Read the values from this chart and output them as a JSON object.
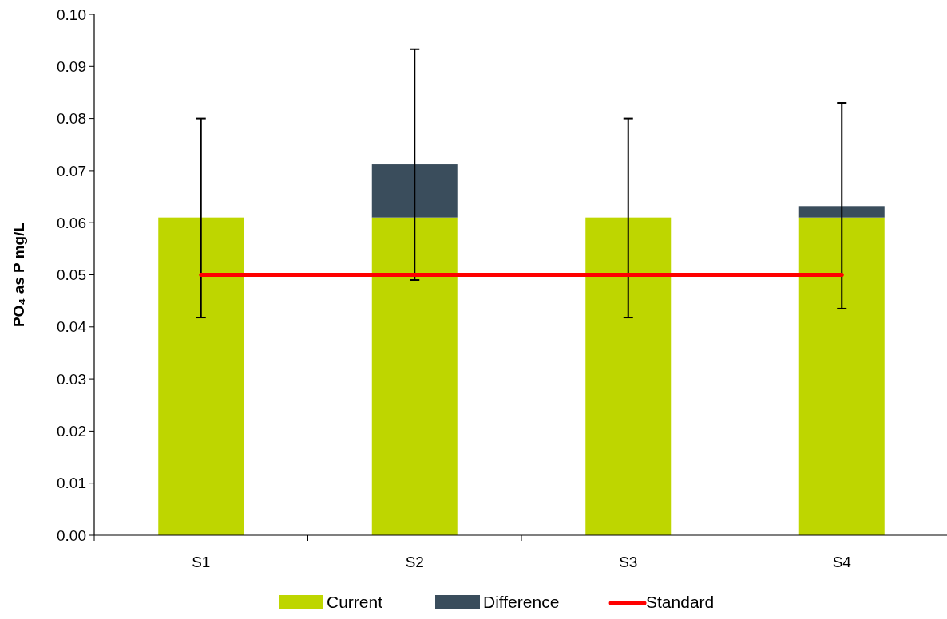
{
  "chart_data": {
    "type": "bar",
    "stacked": true,
    "ylabel": "PO₄ as P mg/L",
    "categories": [
      "S1",
      "S2",
      "S3",
      "S4"
    ],
    "series": [
      {
        "name": "Current",
        "color": "#bed600",
        "values": [
          0.061,
          0.061,
          0.061,
          0.061
        ],
        "errors": [
          [
            0.0418,
            0.08
          ],
          [
            0.049,
            0.0933
          ],
          [
            0.0418,
            0.08
          ],
          [
            0.0435,
            0.083
          ]
        ]
      },
      {
        "name": "Difference",
        "color": "#3a4d5c",
        "values": [
          0,
          0.0102,
          0,
          0.0022
        ]
      },
      {
        "name": "Standard",
        "type": "line",
        "color": "#ff0000",
        "values": [
          0.05,
          0.05,
          0.05,
          0.05
        ]
      }
    ],
    "ylim": [
      0,
      0.1
    ],
    "yticks": [
      {
        "value": 0,
        "label": "0.00"
      },
      {
        "value": 0.01,
        "label": "0.01"
      },
      {
        "value": 0.02,
        "label": "0.02"
      },
      {
        "value": 0.03,
        "label": "0.03"
      },
      {
        "value": 0.04,
        "label": "0.04"
      },
      {
        "value": 0.05,
        "label": "0.05"
      },
      {
        "value": 0.06,
        "label": "0.06"
      },
      {
        "value": 0.07,
        "label": "0.07"
      },
      {
        "value": 0.08,
        "label": "0.08"
      },
      {
        "value": 0.09,
        "label": "0.09"
      },
      {
        "value": 0.1,
        "label": "0.10"
      }
    ],
    "grid": false,
    "legend": "bottom"
  }
}
